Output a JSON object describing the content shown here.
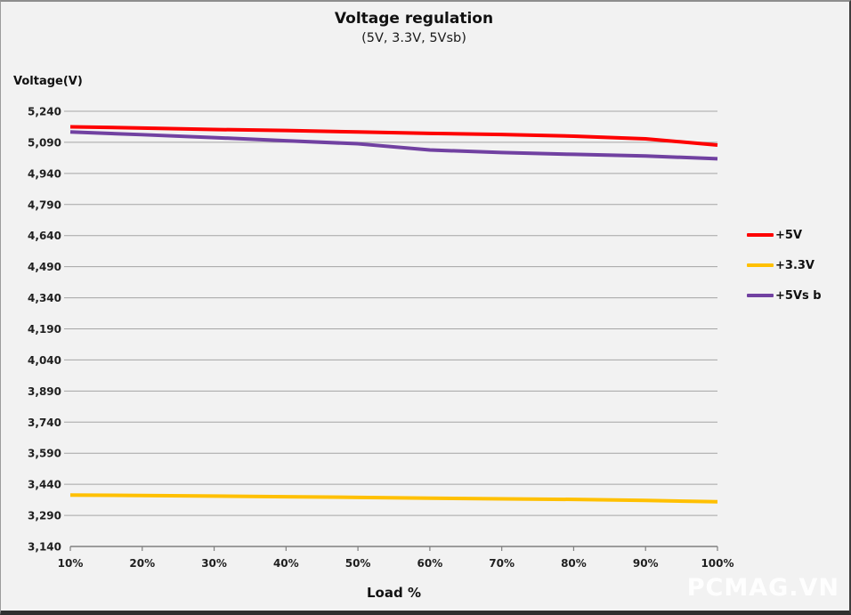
{
  "header": {
    "title": "Voltage regulation",
    "subtitle": "(5V, 3.3V, 5Vsb)"
  },
  "axes": {
    "y_title": "Voltage(V)",
    "x_title": "Load %"
  },
  "watermark": "PCMAG.VN",
  "colors": {
    "background": "#f2f2f2",
    "grid": "#a5a5a5",
    "axis": "#7f7f7f",
    "tick_text": "#1f1f1f",
    "red": "#fe0000",
    "yellow": "#ffc000",
    "purple": "#7141a1",
    "watermark": "#ffffff"
  },
  "legend": [
    {
      "label": "+5V",
      "color": "#fe0000"
    },
    {
      "label": "+3.3V",
      "color": "#ffc000"
    },
    {
      "label": "+5Vs b",
      "color": "#7141a1"
    }
  ],
  "chart_data": {
    "type": "line",
    "title": "Voltage regulation",
    "subtitle": "(5V, 3.3V, 5Vsb)",
    "xlabel": "Load %",
    "ylabel": "Voltage(V)",
    "categories": [
      "10%",
      "20%",
      "30%",
      "40%",
      "50%",
      "60%",
      "70%",
      "80%",
      "90%",
      "100%"
    ],
    "series": [
      {
        "name": "+5V",
        "color": "#fe0000",
        "values": [
          5165,
          5159,
          5152,
          5147,
          5140,
          5133,
          5128,
          5120,
          5107,
          5077
        ]
      },
      {
        "name": "+3.3V",
        "color": "#ffc000",
        "values": [
          3388,
          3386,
          3383,
          3380,
          3377,
          3373,
          3370,
          3367,
          3362,
          3356
        ]
      },
      {
        "name": "+5Vs b",
        "color": "#7141a1",
        "values": [
          5140,
          5127,
          5113,
          5098,
          5083,
          5053,
          5041,
          5032,
          5024,
          5011
        ]
      }
    ],
    "ylim": [
      3140,
      5240
    ],
    "ytick_step": 150,
    "yticks": [
      {
        "value": 5240,
        "label": "5,240"
      },
      {
        "value": 5090,
        "label": "5,090"
      },
      {
        "value": 4940,
        "label": "4,940"
      },
      {
        "value": 4790,
        "label": "4,790"
      },
      {
        "value": 4640,
        "label": "4,640"
      },
      {
        "value": 4490,
        "label": "4,490"
      },
      {
        "value": 4340,
        "label": "4,340"
      },
      {
        "value": 4190,
        "label": "4,190"
      },
      {
        "value": 4040,
        "label": "4,040"
      },
      {
        "value": 3890,
        "label": "3,890"
      },
      {
        "value": 3740,
        "label": "3,740"
      },
      {
        "value": 3590,
        "label": "3,590"
      },
      {
        "value": 3440,
        "label": "3,440"
      },
      {
        "value": 3290,
        "label": "3,290"
      },
      {
        "value": 3140,
        "label": "3,140"
      }
    ],
    "grid": true,
    "legend_position": "right"
  }
}
